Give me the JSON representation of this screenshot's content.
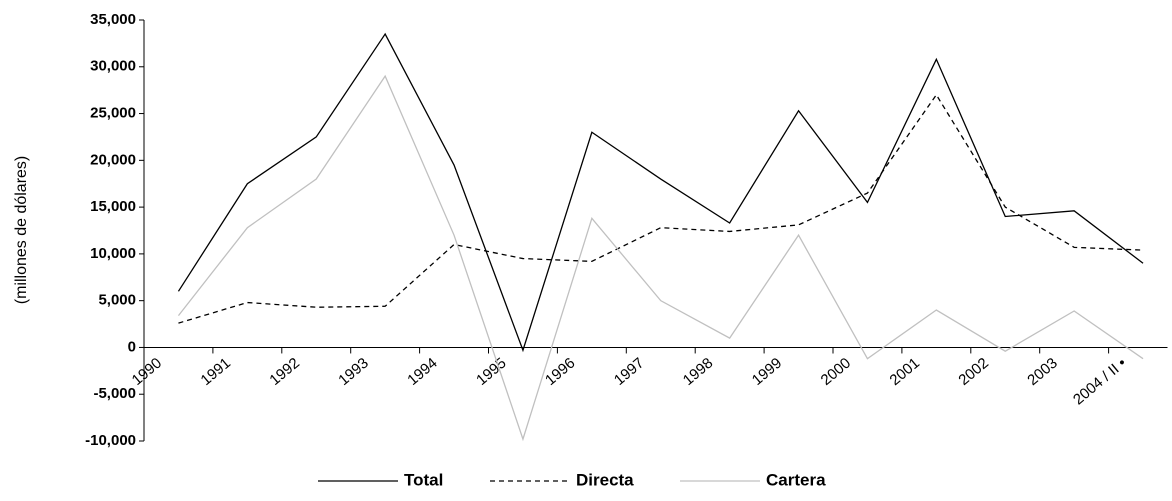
{
  "chart_data": {
    "type": "line",
    "y_label": "(millones de dólares)",
    "categories": [
      "1990",
      "1991",
      "1992",
      "1993",
      "1994",
      "1995",
      "1996",
      "1997",
      "1998",
      "1999",
      "2000",
      "2001",
      "2002",
      "2003",
      "2004 / II •"
    ],
    "series": [
      {
        "name": "Total",
        "color": "#000000",
        "dash": false,
        "values": [
          6000,
          17500,
          22500,
          33500,
          19500,
          -300,
          23000,
          18000,
          13300,
          25300,
          15500,
          30800,
          14000,
          14600,
          9000
        ]
      },
      {
        "name": "Directa",
        "color": "#000000",
        "dash": true,
        "values": [
          2600,
          4800,
          4300,
          4400,
          11000,
          9500,
          9200,
          12800,
          12400,
          13100,
          16500,
          27000,
          15000,
          10700,
          10400
        ]
      },
      {
        "name": "Cartera",
        "color": "#c0c0c0",
        "dash": false,
        "values": [
          3400,
          12800,
          18000,
          29000,
          12000,
          -9800,
          13800,
          5000,
          1000,
          12000,
          -1200,
          4000,
          -400,
          3900,
          -1200
        ]
      }
    ],
    "ylim": [
      -10000,
      35000
    ],
    "yticks": [
      {
        "value": -10000,
        "label": "-10,000"
      },
      {
        "value": -5000,
        "label": "-5,000"
      },
      0,
      {
        "value": 5000,
        "label": "5,000"
      },
      {
        "value": 10000,
        "label": "10,000"
      },
      {
        "value": 15000,
        "label": "15,000"
      },
      {
        "value": 20000,
        "label": "20,000"
      },
      {
        "value": 25000,
        "label": "25,000"
      },
      {
        "value": 30000,
        "label": "30,000"
      },
      {
        "value": 35000,
        "label": "35,000"
      }
    ],
    "legend": "bottom"
  }
}
